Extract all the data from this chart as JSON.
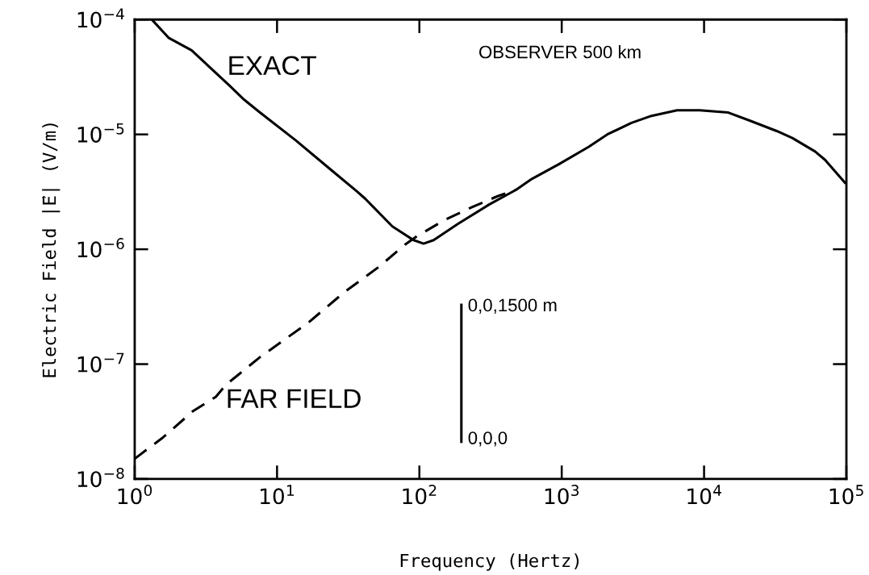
{
  "chart_data": {
    "type": "line",
    "xlabel": "Frequency (Hertz)",
    "ylabel": "Electric Field |E⃗| (V/m)",
    "log": "xy",
    "grid": false,
    "marker": "none",
    "xlim": [
      1,
      100000
    ],
    "ylim": [
      1e-08,
      0.0001
    ],
    "xticks": [
      {
        "value": 1,
        "label": "10$^{0}$"
      },
      {
        "value": 10,
        "label": "10$^{1}$"
      },
      {
        "value": 100,
        "label": "10$^{2}$"
      },
      {
        "value": 1000,
        "label": "10$^{3}$"
      },
      {
        "value": 10000,
        "label": "10$^{4}$"
      },
      {
        "value": 100000,
        "label": "10$^{5}$"
      }
    ],
    "yticks": [
      {
        "value": 1e-08,
        "label": "10$^{−8}$"
      },
      {
        "value": 1e-07,
        "label": "10$^{−7}$"
      },
      {
        "value": 1e-06,
        "label": "10$^{−6}$"
      },
      {
        "value": 1e-05,
        "label": "10$^{−5}$"
      },
      {
        "value": 0.0001,
        "label": "10$^{−4}$"
      }
    ],
    "series": [
      {
        "name": "EXACT",
        "color": "#000000",
        "line_style": "solid",
        "x": [
          1.32,
          1.74,
          2.51,
          4.57,
          5.89,
          7.59,
          13.5,
          24.0,
          36.3,
          41.7,
          64.6,
          91.2,
          107,
          126,
          186,
          309,
          479,
          617,
          955,
          1550,
          2090,
          3090,
          4270,
          6460,
          9330,
          14800,
          20900,
          32400,
          41700,
          60300,
          70800,
          97700
        ],
        "values": [
          0.0001,
          6.9e-05,
          5.4e-05,
          2.7e-05,
          2e-05,
          1.55e-05,
          8.9e-06,
          4.9e-06,
          3.2e-06,
          2.75e-06,
          1.58e-06,
          1.2e-06,
          1.12e-06,
          1.2e-06,
          1.66e-06,
          2.45e-06,
          3.3e-06,
          4.1e-06,
          5.5e-06,
          7.8e-06,
          1e-05,
          1.26e-05,
          1.45e-05,
          1.62e-05,
          1.62e-05,
          1.55e-05,
          1.32e-05,
          1.07e-05,
          9.3e-06,
          7.1e-06,
          6e-06,
          3.8e-06
        ]
      },
      {
        "name": "FAR FIELD",
        "color": "#000000",
        "line_style": "dashed",
        "x": [
          1.0,
          1.58,
          2.57,
          3.72,
          4.37,
          7.59,
          16.6,
          29.5,
          52.5,
          79.4,
          95.5,
          148,
          229,
          355,
          479
        ],
        "values": [
          1.5e-08,
          2.3e-08,
          3.9e-08,
          5.2e-08,
          6.6e-08,
          1.15e-07,
          2.3e-07,
          4.2e-07,
          7.1e-07,
          1.1e-06,
          1.29e-06,
          1.78e-06,
          2.3e-06,
          2.9e-06,
          3.3e-06
        ]
      }
    ],
    "annotations": [
      "OBSERVER 500 km",
      "0,0,1500 m",
      "0,0,0"
    ]
  }
}
